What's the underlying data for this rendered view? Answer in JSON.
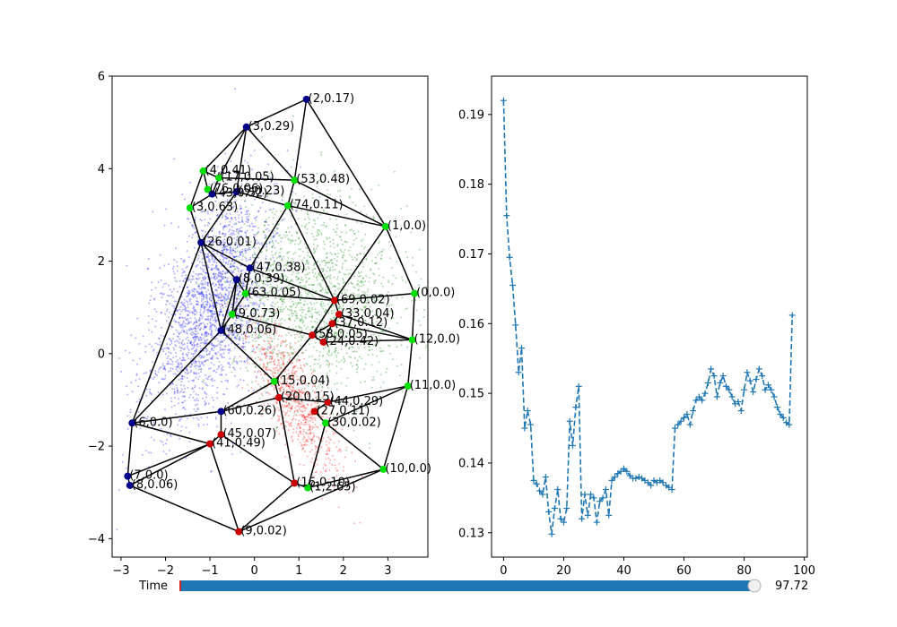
{
  "chart_data": [
    {
      "type": "scatter",
      "subtype": "graph-over-point-cloud",
      "xlim": [
        -3.2,
        3.9
      ],
      "ylim": [
        -4.4,
        6.0
      ],
      "x_ticks": [
        -3,
        -2,
        -1,
        0,
        1,
        2,
        3
      ],
      "y_ticks": [
        -4,
        -2,
        0,
        2,
        4,
        6
      ],
      "grid": false,
      "colors": {
        "cloud_blue": "#0000ff",
        "cloud_green": "#008000",
        "cloud_red": "#ff0000",
        "edge": "#000000",
        "node_blue": "#00008b",
        "node_green": "#00e000",
        "node_red": "#cc0000"
      },
      "clouds": [
        {
          "color": "blue",
          "cx": -1.0,
          "cy": 1.0,
          "sx": 0.55,
          "sy": 1.3,
          "rot": -0.35,
          "n": 2200
        },
        {
          "color": "green",
          "cx": 1.3,
          "cy": 1.2,
          "sx": 1.0,
          "sy": 1.1,
          "rot": 0.2,
          "n": 1800
        },
        {
          "color": "red",
          "cx": 0.9,
          "cy": -1.0,
          "sx": 0.3,
          "sy": 0.9,
          "rot": 0.5,
          "n": 800
        }
      ],
      "nodes": [
        {
          "id": "2",
          "label": "(2,0.17)",
          "x": 1.17,
          "y": 5.5,
          "c": "blue"
        },
        {
          "id": "3",
          "label": "(3,0.29)",
          "x": -0.18,
          "y": 4.9,
          "c": "blue"
        },
        {
          "id": "4",
          "label": "(4,0.41)",
          "x": -1.15,
          "y": 3.95,
          "c": "green"
        },
        {
          "id": "17",
          "label": "(17,0.05)",
          "x": -0.8,
          "y": 3.8,
          "c": "green"
        },
        {
          "id": "53",
          "label": "(53,0.48)",
          "x": 0.9,
          "y": 3.75,
          "c": "green"
        },
        {
          "id": "A1",
          "label": "(76,0.06)",
          "x": -1.05,
          "y": 3.55,
          "c": "green"
        },
        {
          "id": "A2",
          "label": "(43,0.52)",
          "x": -0.95,
          "y": 3.45,
          "c": "blue"
        },
        {
          "id": "A3",
          "label": "(5,0.23)",
          "x": -0.4,
          "y": 3.5,
          "c": "blue"
        },
        {
          "id": "A4",
          "label": "(3,0.63)",
          "x": -1.45,
          "y": 3.15,
          "c": "green"
        },
        {
          "id": "74",
          "label": "(74,0.11)",
          "x": 0.75,
          "y": 3.2,
          "c": "green"
        },
        {
          "id": "1",
          "label": "(1,0.0)",
          "x": 2.95,
          "y": 2.75,
          "c": "green"
        },
        {
          "id": "26",
          "label": "(26,0.01)",
          "x": -1.2,
          "y": 2.4,
          "c": "blue"
        },
        {
          "id": "47",
          "label": "(47,0.38)",
          "x": -0.1,
          "y": 1.85,
          "c": "blue"
        },
        {
          "id": "B1",
          "label": "(8,0.39)",
          "x": -0.4,
          "y": 1.6,
          "c": "blue"
        },
        {
          "id": "B2",
          "label": "(63,0.05)",
          "x": -0.2,
          "y": 1.3,
          "c": "green"
        },
        {
          "id": "00",
          "label": "(0,0.0)",
          "x": 3.6,
          "y": 1.3,
          "c": "green"
        },
        {
          "id": "C1",
          "label": "(69,0.02)",
          "x": 1.8,
          "y": 1.15,
          "c": "red"
        },
        {
          "id": "C2",
          "label": "(33,0.04)",
          "x": 1.9,
          "y": 0.85,
          "c": "red"
        },
        {
          "id": "C3",
          "label": "(37,0.12)",
          "x": 1.75,
          "y": 0.65,
          "c": "red"
        },
        {
          "id": "D1",
          "label": "(9,0.73)",
          "x": -0.5,
          "y": 0.85,
          "c": "green"
        },
        {
          "id": "D2",
          "label": "(48,0.06)",
          "x": -0.75,
          "y": 0.5,
          "c": "blue"
        },
        {
          "id": "12",
          "label": "(12,0.0)",
          "x": 3.55,
          "y": 0.3,
          "c": "green"
        },
        {
          "id": "E1",
          "label": "(24,0.42)",
          "x": 1.55,
          "y": 0.25,
          "c": "red"
        },
        {
          "id": "E2",
          "label": "(58,0.05)",
          "x": 1.3,
          "y": 0.4,
          "c": "red"
        },
        {
          "id": "11",
          "label": "(11,0.0)",
          "x": 3.45,
          "y": -0.7,
          "c": "green"
        },
        {
          "id": "15",
          "label": "(15,0.04)",
          "x": 0.45,
          "y": -0.6,
          "c": "green"
        },
        {
          "id": "F1",
          "label": "(20,0.15)",
          "x": 0.55,
          "y": -0.95,
          "c": "red"
        },
        {
          "id": "F2",
          "label": "(44,0.29)",
          "x": 1.65,
          "y": -1.05,
          "c": "red"
        },
        {
          "id": "F3",
          "label": "(27,0.11)",
          "x": 1.35,
          "y": -1.25,
          "c": "red"
        },
        {
          "id": "60",
          "label": "(60,0.26)",
          "x": -0.75,
          "y": -1.25,
          "c": "blue"
        },
        {
          "id": "30",
          "label": "(30,0.02)",
          "x": 1.6,
          "y": -1.5,
          "c": "green"
        },
        {
          "id": "6",
          "label": "(6,0.0)",
          "x": -2.75,
          "y": -1.5,
          "c": "blue"
        },
        {
          "id": "45",
          "label": "(45,0.07)",
          "x": -0.75,
          "y": -1.75,
          "c": "red"
        },
        {
          "id": "41",
          "label": "(41,0.49)",
          "x": -1.0,
          "y": -1.95,
          "c": "red"
        },
        {
          "id": "10",
          "label": "(10,0.0)",
          "x": 2.9,
          "y": -2.5,
          "c": "green"
        },
        {
          "id": "16",
          "label": "(16,0.10)",
          "x": 0.9,
          "y": -2.8,
          "c": "red"
        },
        {
          "id": "G1",
          "label": "(1,2.65)",
          "x": 1.2,
          "y": -2.9,
          "c": "green"
        },
        {
          "id": "7",
          "label": "(7,0.0)",
          "x": -2.85,
          "y": -2.65,
          "c": "blue"
        },
        {
          "id": "8",
          "label": "(8,0.06)",
          "x": -2.8,
          "y": -2.85,
          "c": "blue"
        },
        {
          "id": "9",
          "label": "(9,0.02)",
          "x": -0.35,
          "y": -3.85,
          "c": "red"
        }
      ],
      "edges": [
        [
          "2",
          "3"
        ],
        [
          "2",
          "53"
        ],
        [
          "2",
          "1"
        ],
        [
          "3",
          "4"
        ],
        [
          "3",
          "17"
        ],
        [
          "3",
          "53"
        ],
        [
          "3",
          "A3"
        ],
        [
          "4",
          "17"
        ],
        [
          "4",
          "A1"
        ],
        [
          "4",
          "A4"
        ],
        [
          "17",
          "53"
        ],
        [
          "17",
          "A2"
        ],
        [
          "53",
          "74"
        ],
        [
          "53",
          "1"
        ],
        [
          "74",
          "1"
        ],
        [
          "74",
          "A3"
        ],
        [
          "74",
          "47"
        ],
        [
          "74",
          "C1"
        ],
        [
          "A1",
          "A2"
        ],
        [
          "A2",
          "A3"
        ],
        [
          "A4",
          "26"
        ],
        [
          "A4",
          "A2"
        ],
        [
          "26",
          "B1"
        ],
        [
          "26",
          "D2"
        ],
        [
          "26",
          "6"
        ],
        [
          "26",
          "A3"
        ],
        [
          "26",
          "47"
        ],
        [
          "47",
          "B2"
        ],
        [
          "47",
          "C1"
        ],
        [
          "B1",
          "B2"
        ],
        [
          "B1",
          "D1"
        ],
        [
          "B2",
          "C1"
        ],
        [
          "B2",
          "D1"
        ],
        [
          "1",
          "00"
        ],
        [
          "1",
          "C1"
        ],
        [
          "00",
          "12"
        ],
        [
          "00",
          "C1"
        ],
        [
          "C1",
          "C2"
        ],
        [
          "C2",
          "C3"
        ],
        [
          "C3",
          "E1"
        ],
        [
          "C2",
          "12"
        ],
        [
          "12",
          "11"
        ],
        [
          "12",
          "E1"
        ],
        [
          "E1",
          "E2"
        ],
        [
          "E2",
          "D1"
        ],
        [
          "E2",
          "15"
        ],
        [
          "D1",
          "D2"
        ],
        [
          "D2",
          "15"
        ],
        [
          "D2",
          "6"
        ],
        [
          "11",
          "F2"
        ],
        [
          "11",
          "30"
        ],
        [
          "11",
          "10"
        ],
        [
          "15",
          "F1"
        ],
        [
          "F1",
          "F2"
        ],
        [
          "F2",
          "F3"
        ],
        [
          "F3",
          "30"
        ],
        [
          "F1",
          "60"
        ],
        [
          "60",
          "45"
        ],
        [
          "60",
          "6"
        ],
        [
          "45",
          "41"
        ],
        [
          "41",
          "6"
        ],
        [
          "41",
          "7"
        ],
        [
          "41",
          "8"
        ],
        [
          "41",
          "9"
        ],
        [
          "45",
          "16"
        ],
        [
          "16",
          "G1"
        ],
        [
          "G1",
          "10"
        ],
        [
          "30",
          "10"
        ],
        [
          "16",
          "9"
        ],
        [
          "9",
          "8"
        ],
        [
          "6",
          "7"
        ],
        [
          "7",
          "8"
        ],
        [
          "15",
          "60"
        ],
        [
          "E2",
          "C3"
        ],
        [
          "F1",
          "16"
        ],
        [
          "30",
          "G1"
        ],
        [
          "10",
          "9"
        ],
        [
          "D2",
          "B1"
        ],
        [
          "C1",
          "E2"
        ],
        [
          "12",
          "C3"
        ]
      ]
    },
    {
      "type": "line",
      "style": "dashed-with-plus-markers",
      "color": "#1f77b4",
      "xlim": [
        -4,
        101
      ],
      "ylim": [
        0.1265,
        0.1955
      ],
      "x_ticks": [
        0,
        20,
        40,
        60,
        80,
        100
      ],
      "y_ticks": [
        0.13,
        0.14,
        0.15,
        0.16,
        0.17,
        0.18,
        0.19
      ],
      "y_tick_labels": [
        "0.13",
        "0.14",
        "0.15",
        "0.16",
        "0.17",
        "0.18",
        "0.19"
      ],
      "grid": false,
      "x": [
        0,
        1,
        2,
        3,
        4,
        5,
        6,
        7,
        8,
        9,
        10,
        11,
        12,
        13,
        14,
        15,
        16,
        17,
        18,
        19,
        20,
        21,
        22,
        23,
        24,
        25,
        26,
        27,
        28,
        29,
        30,
        31,
        32,
        33,
        34,
        35,
        36,
        37,
        38,
        39,
        40,
        41,
        42,
        43,
        44,
        45,
        46,
        47,
        48,
        49,
        50,
        51,
        52,
        53,
        54,
        55,
        56,
        57,
        58,
        59,
        60,
        61,
        62,
        63,
        64,
        65,
        66,
        67,
        68,
        69,
        70,
        71,
        72,
        73,
        74,
        75,
        76,
        77,
        78,
        79,
        80,
        81,
        82,
        83,
        84,
        85,
        86,
        87,
        88,
        89,
        90,
        91,
        92,
        93,
        94,
        95,
        96
      ],
      "y": [
        0.192,
        0.1755,
        0.1695,
        0.1655,
        0.1598,
        0.153,
        0.1565,
        0.145,
        0.1475,
        0.1455,
        0.1375,
        0.137,
        0.136,
        0.1355,
        0.138,
        0.133,
        0.1298,
        0.1335,
        0.1362,
        0.132,
        0.1315,
        0.1335,
        0.146,
        0.1425,
        0.148,
        0.151,
        0.132,
        0.1355,
        0.1325,
        0.1355,
        0.135,
        0.1315,
        0.1345,
        0.135,
        0.1362,
        0.1325,
        0.1375,
        0.138,
        0.1385,
        0.1388,
        0.1392,
        0.1388,
        0.1382,
        0.1378,
        0.1378,
        0.138,
        0.1378,
        0.1375,
        0.1372,
        0.1368,
        0.1375,
        0.1372,
        0.1375,
        0.1372,
        0.1368,
        0.1365,
        0.1362,
        0.145,
        0.1455,
        0.146,
        0.1465,
        0.147,
        0.1455,
        0.1475,
        0.149,
        0.1495,
        0.149,
        0.15,
        0.1515,
        0.1535,
        0.1525,
        0.1495,
        0.1515,
        0.1525,
        0.151,
        0.1505,
        0.1495,
        0.1485,
        0.1488,
        0.1475,
        0.1505,
        0.153,
        0.1518,
        0.1502,
        0.152,
        0.1535,
        0.1525,
        0.1505,
        0.1512,
        0.1505,
        0.1495,
        0.148,
        0.147,
        0.1465,
        0.1458,
        0.1455,
        0.1612
      ]
    }
  ],
  "slider": {
    "label": "Time",
    "value_text": "97.72",
    "value": 97.72,
    "min": 0,
    "max": 100,
    "fill_color": "#1f77b4",
    "start_marker_color": "#d62728"
  }
}
